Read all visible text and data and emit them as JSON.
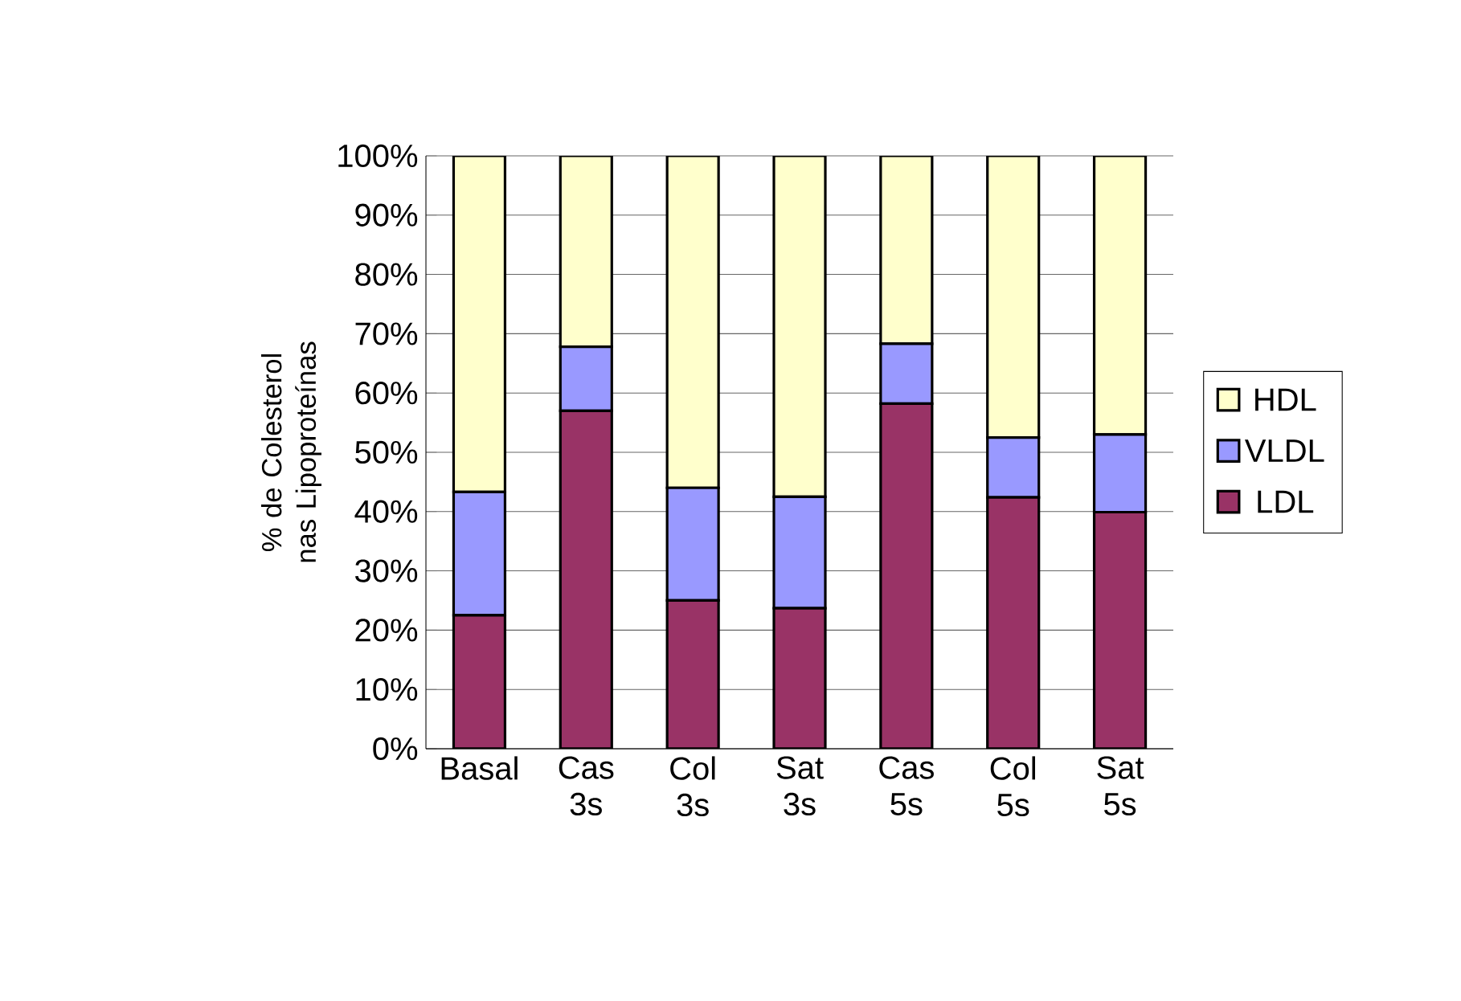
{
  "chart_data": {
    "type": "bar",
    "stacked": true,
    "ylabel": "% de Colesterol nas Lipoproteínas",
    "categories": [
      "Basal",
      "Cas 3s",
      "Col 3s",
      "Sat 3s",
      "Cas 5s",
      "Col 5s",
      "Sat 5s"
    ],
    "series": [
      {
        "name": "LDL",
        "color": "#993366",
        "values": [
          22.5,
          57.0,
          25.0,
          23.7,
          58.2,
          42.4,
          39.9
        ]
      },
      {
        "name": "VLDL",
        "color": "#9999ff",
        "values": [
          20.8,
          10.8,
          19.0,
          18.8,
          10.1,
          10.1,
          13.1
        ]
      },
      {
        "name": "HDL",
        "color": "#ffffcc",
        "values": [
          56.7,
          32.2,
          56.0,
          57.5,
          31.7,
          47.5,
          47.0
        ]
      }
    ],
    "ylim": [
      0,
      100
    ],
    "yticks": [
      {
        "value": 0,
        "label": "0%"
      },
      {
        "value": 10,
        "label": "10%"
      },
      {
        "value": 20,
        "label": "20%"
      },
      {
        "value": 30,
        "label": "30%"
      },
      {
        "value": 40,
        "label": "40%"
      },
      {
        "value": 50,
        "label": "50%"
      },
      {
        "value": 60,
        "label": "60%"
      },
      {
        "value": 70,
        "label": "70%"
      },
      {
        "value": 80,
        "label": "80%"
      },
      {
        "value": 90,
        "label": "90%"
      },
      {
        "value": 100,
        "label": "100%"
      }
    ],
    "grid": "y",
    "legend": "right"
  }
}
